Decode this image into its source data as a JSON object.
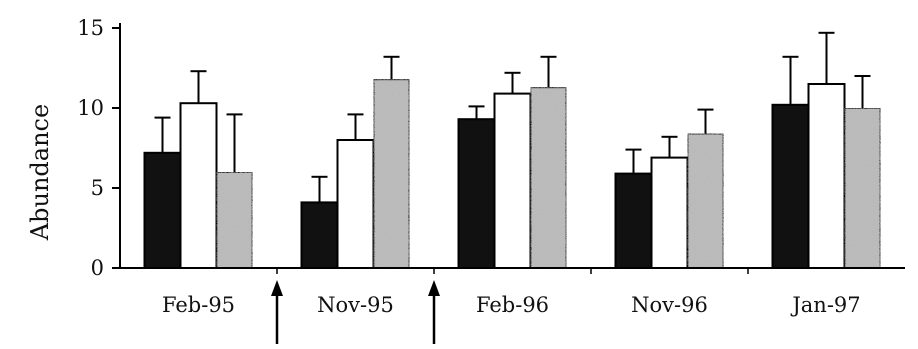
{
  "chart_data": {
    "type": "bar",
    "title": "",
    "xlabel": "",
    "ylabel": "Abundance",
    "ylim": [
      0,
      15
    ],
    "yticks": [
      0,
      5,
      10,
      15
    ],
    "categories": [
      "Feb-95",
      "Nov-95",
      "Feb-96",
      "Nov-96",
      "Jan-97"
    ],
    "series": [
      {
        "fill": "#111111",
        "values": [
          7.2,
          4.1,
          9.3,
          5.9,
          10.2
        ],
        "errors": [
          2.2,
          1.6,
          0.8,
          1.5,
          3.0
        ]
      },
      {
        "fill": "#ffffff",
        "values": [
          10.3,
          8.0,
          10.9,
          6.9,
          11.5
        ],
        "errors": [
          2.0,
          1.6,
          1.3,
          1.3,
          3.2
        ]
      },
      {
        "fill": "#bdbdbd",
        "values": [
          6.0,
          11.8,
          11.3,
          8.4,
          10.0
        ],
        "errors": [
          3.6,
          1.4,
          1.9,
          1.5,
          2.0
        ]
      }
    ],
    "markers": [
      {
        "type": "arrow-up",
        "between": [
          0,
          1
        ]
      },
      {
        "type": "arrow-up",
        "between": [
          1,
          2
        ]
      }
    ],
    "grid": false,
    "legend": "none"
  }
}
